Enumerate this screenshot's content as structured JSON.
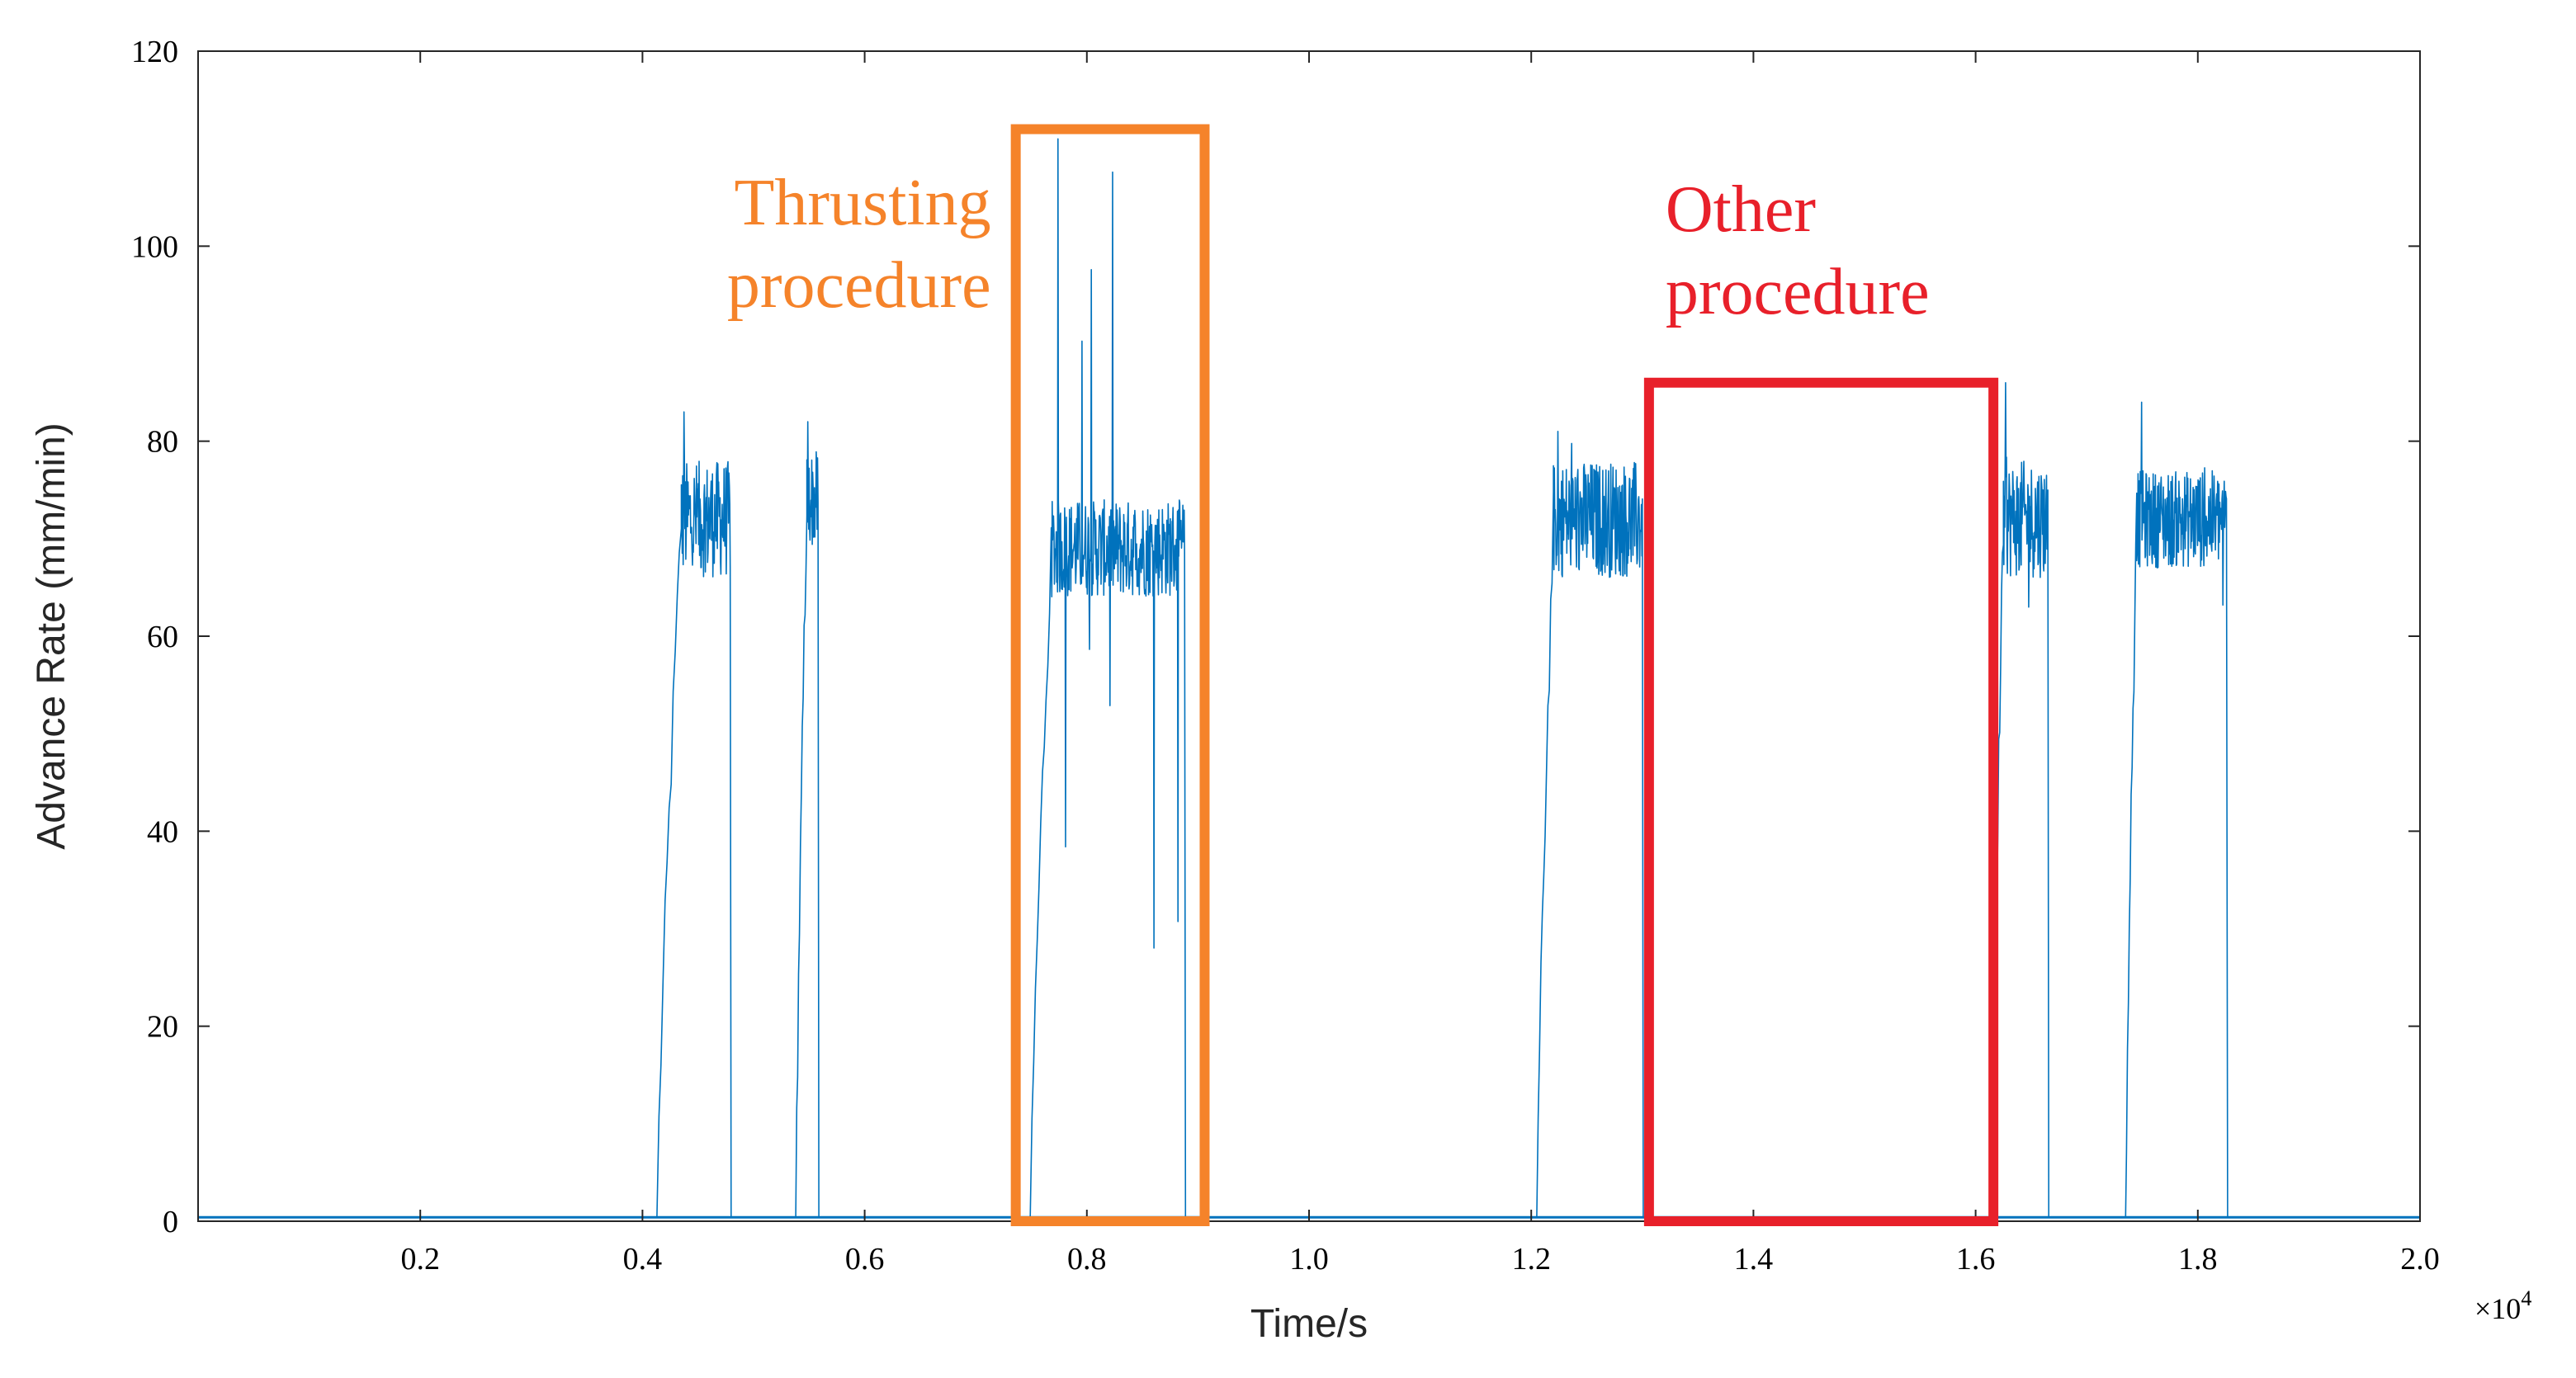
{
  "chart_data": {
    "type": "line",
    "title": "",
    "xlabel": "Time/s",
    "ylabel": "Advance Rate (mm/min)",
    "xlim": [
      0,
      20000
    ],
    "ylim": [
      0,
      120
    ],
    "x_ticks": [
      2000,
      4000,
      6000,
      8000,
      10000,
      12000,
      14000,
      16000,
      18000,
      20000
    ],
    "x_tick_labels": [
      "0.2",
      "0.4",
      "0.6",
      "0.8",
      "1.0",
      "1.2",
      "1.4",
      "1.6",
      "1.8",
      "2.0"
    ],
    "x_exponent_label": "×10",
    "x_exponent_power": "4",
    "y_ticks": [
      0,
      20,
      40,
      60,
      80,
      100,
      120
    ],
    "y_tick_labels": [
      "0",
      "20",
      "40",
      "60",
      "80",
      "100",
      "120"
    ],
    "grid": false,
    "series_color": "#0072BD",
    "segments": [
      {
        "start": 4130,
        "plateau_start": 4350,
        "end": 4790,
        "mean": 72,
        "noise": 6,
        "peak": 83
      },
      {
        "start": 5380,
        "plateau_start": 5480,
        "end": 5580,
        "mean": 74,
        "noise": 5,
        "peak": 82
      },
      {
        "start": 7490,
        "plateau_start": 7680,
        "end": 8880,
        "mean": 69,
        "noise": 5,
        "peak": 111
      },
      {
        "start": 12050,
        "plateau_start": 12200,
        "end": 13000,
        "mean": 72,
        "noise": 6,
        "peak": 81
      },
      {
        "start": 16150,
        "plateau_start": 16250,
        "end": 16650,
        "mean": 72,
        "noise": 6,
        "peak": 86
      },
      {
        "start": 17350,
        "plateau_start": 17450,
        "end": 18260,
        "mean": 72,
        "noise": 5,
        "peak": 84
      }
    ],
    "annotations": [
      {
        "label_line1": "Thrusting",
        "label_line2": "procedure",
        "color": "#F5832A",
        "x_range": [
          7360,
          9060
        ],
        "y_range": [
          0,
          112
        ]
      },
      {
        "label_line1": "Other",
        "label_line2": "procedure",
        "color": "#E8202A",
        "x_range": [
          13060,
          16160
        ],
        "y_range": [
          0,
          86
        ]
      }
    ]
  }
}
